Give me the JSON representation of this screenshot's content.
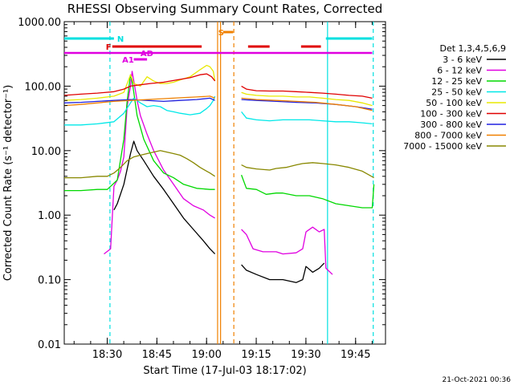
{
  "chart_data": {
    "type": "line",
    "title": "RHESSI Observing Summary Count Rates, Corrected",
    "xlabel": "Start Time (17-Jul-03 18:17:02)",
    "ylabel": "Corrected Count Rate (s⁻¹ detector⁻¹)",
    "yscale": "log",
    "ylim": [
      0.01,
      1000
    ],
    "xlim_minutes_after_start": [
      0,
      97
    ],
    "x_tick_labels": [
      "18:30",
      "18:45",
      "19:00",
      "19:15",
      "19:30",
      "19:45"
    ],
    "x_tick_minutes": [
      12.97,
      27.97,
      42.97,
      57.97,
      72.97,
      87.97
    ],
    "y_tick_labels": [
      "0.01",
      "0.10",
      "1.00",
      "10.00",
      "100.00",
      "1000.00"
    ],
    "y_tick_values": [
      0.01,
      0.1,
      1,
      10,
      100,
      1000
    ],
    "legend_header": "Det 1,3,4,5,6,9",
    "series": [
      {
        "name": "3 - 6 keV",
        "color": "#000000",
        "values": [
          [
            15,
            1.2
          ],
          [
            16,
            1.5
          ],
          [
            18,
            3
          ],
          [
            20,
            9
          ],
          [
            21,
            14
          ],
          [
            22,
            10
          ],
          [
            24,
            7
          ],
          [
            27,
            4
          ],
          [
            30,
            2.5
          ],
          [
            33,
            1.5
          ],
          [
            36,
            0.9
          ],
          [
            39,
            0.6
          ],
          [
            42,
            0.4
          ],
          [
            44,
            0.3
          ],
          [
            45.5,
            0.25
          ],
          [
            50,
            null
          ],
          [
            53.5,
            0.17
          ],
          [
            55,
            0.14
          ],
          [
            58,
            0.12
          ],
          [
            62,
            0.1
          ],
          [
            66,
            0.1
          ],
          [
            70,
            0.09
          ],
          [
            72,
            0.1
          ],
          [
            73,
            0.16
          ],
          [
            75,
            0.13
          ],
          [
            77,
            0.15
          ],
          [
            78.5,
            0.18
          ]
        ]
      },
      {
        "name": "6 - 12 keV",
        "color": "#e000e0",
        "values": [
          [
            12,
            0.25
          ],
          [
            14,
            0.3
          ],
          [
            15,
            2.8
          ],
          [
            16,
            3.5
          ],
          [
            17,
            4.8
          ],
          [
            18,
            8
          ],
          [
            19,
            50
          ],
          [
            20,
            100
          ],
          [
            20.5,
            170
          ],
          [
            21,
            120
          ],
          [
            22,
            60
          ],
          [
            23,
            35
          ],
          [
            25,
            18
          ],
          [
            27,
            10
          ],
          [
            30,
            5
          ],
          [
            33,
            3
          ],
          [
            36,
            1.8
          ],
          [
            39,
            1.4
          ],
          [
            42,
            1.2
          ],
          [
            44,
            1.0
          ],
          [
            45.5,
            0.9
          ],
          [
            50,
            null
          ],
          [
            53.5,
            0.6
          ],
          [
            55,
            0.5
          ],
          [
            57,
            0.3
          ],
          [
            60,
            0.27
          ],
          [
            64,
            0.27
          ],
          [
            66,
            0.25
          ],
          [
            70,
            0.26
          ],
          [
            72,
            0.3
          ],
          [
            73,
            0.55
          ],
          [
            75,
            0.65
          ],
          [
            77,
            0.55
          ],
          [
            78.5,
            0.6
          ],
          [
            79,
            0.15
          ],
          [
            81,
            0.12
          ]
        ]
      },
      {
        "name": "12 - 25 keV",
        "color": "#00d800",
        "values": [
          [
            0,
            2.4
          ],
          [
            5,
            2.4
          ],
          [
            10,
            2.5
          ],
          [
            13,
            2.5
          ],
          [
            16,
            3.5
          ],
          [
            18,
            15
          ],
          [
            19,
            60
          ],
          [
            20,
            150
          ],
          [
            20.5,
            120
          ],
          [
            21,
            80
          ],
          [
            22,
            35
          ],
          [
            24,
            15
          ],
          [
            27,
            7
          ],
          [
            30,
            4.5
          ],
          [
            33,
            3.8
          ],
          [
            36,
            3
          ],
          [
            40,
            2.6
          ],
          [
            44,
            2.5
          ],
          [
            45.5,
            2.5
          ],
          [
            50,
            null
          ],
          [
            53.5,
            4.2
          ],
          [
            55,
            2.6
          ],
          [
            58,
            2.5
          ],
          [
            61,
            2.1
          ],
          [
            64,
            2.2
          ],
          [
            66,
            2.2
          ],
          [
            70,
            2
          ],
          [
            74,
            2
          ],
          [
            78,
            1.8
          ],
          [
            82,
            1.5
          ],
          [
            86,
            1.4
          ],
          [
            90,
            1.3
          ],
          [
            93,
            1.3
          ],
          [
            93.5,
            3
          ]
        ]
      },
      {
        "name": "25 - 50 keV",
        "color": "#00e8e8",
        "values": [
          [
            0,
            25
          ],
          [
            5,
            25
          ],
          [
            10,
            26
          ],
          [
            15,
            28
          ],
          [
            18,
            38
          ],
          [
            20,
            55
          ],
          [
            21,
            65
          ],
          [
            23,
            55
          ],
          [
            25,
            48
          ],
          [
            27,
            50
          ],
          [
            29,
            48
          ],
          [
            31,
            42
          ],
          [
            33,
            40
          ],
          [
            35,
            38
          ],
          [
            38,
            36
          ],
          [
            41,
            38
          ],
          [
            43,
            45
          ],
          [
            44,
            50
          ],
          [
            45,
            60
          ],
          [
            45.5,
            70
          ],
          [
            50,
            null
          ],
          [
            53.5,
            40
          ],
          [
            55,
            32
          ],
          [
            58,
            30
          ],
          [
            62,
            29
          ],
          [
            66,
            30
          ],
          [
            70,
            30
          ],
          [
            74,
            30
          ],
          [
            78,
            29
          ],
          [
            82,
            28
          ],
          [
            86,
            28
          ],
          [
            90,
            27
          ],
          [
            93,
            26
          ]
        ]
      },
      {
        "name": "50 - 100 keV",
        "color": "#e8e800",
        "values": [
          [
            0,
            60
          ],
          [
            5,
            62
          ],
          [
            10,
            65
          ],
          [
            15,
            70
          ],
          [
            18,
            80
          ],
          [
            20,
            150
          ],
          [
            21,
            110
          ],
          [
            23,
            100
          ],
          [
            25,
            140
          ],
          [
            27,
            120
          ],
          [
            29,
            110
          ],
          [
            31,
            110
          ],
          [
            33,
            115
          ],
          [
            35,
            125
          ],
          [
            38,
            140
          ],
          [
            41,
            180
          ],
          [
            43,
            210
          ],
          [
            44,
            200
          ],
          [
            45,
            170
          ],
          [
            45.5,
            120
          ],
          [
            50,
            null
          ],
          [
            53.5,
            80
          ],
          [
            55,
            75
          ],
          [
            58,
            72
          ],
          [
            62,
            70
          ],
          [
            66,
            70
          ],
          [
            70,
            68
          ],
          [
            74,
            68
          ],
          [
            78,
            65
          ],
          [
            82,
            62
          ],
          [
            86,
            60
          ],
          [
            90,
            55
          ],
          [
            93,
            50
          ]
        ]
      },
      {
        "name": "100 - 300 keV",
        "color": "#e00000",
        "values": [
          [
            0,
            72
          ],
          [
            5,
            75
          ],
          [
            10,
            78
          ],
          [
            15,
            82
          ],
          [
            18,
            90
          ],
          [
            20,
            100
          ],
          [
            23,
            105
          ],
          [
            26,
            110
          ],
          [
            30,
            115
          ],
          [
            34,
            125
          ],
          [
            38,
            135
          ],
          [
            41,
            150
          ],
          [
            43,
            155
          ],
          [
            44.5,
            140
          ],
          [
            45.5,
            120
          ],
          [
            50,
            null
          ],
          [
            53.5,
            100
          ],
          [
            55,
            90
          ],
          [
            58,
            85
          ],
          [
            62,
            84
          ],
          [
            66,
            84
          ],
          [
            70,
            82
          ],
          [
            74,
            80
          ],
          [
            78,
            78
          ],
          [
            82,
            75
          ],
          [
            86,
            72
          ],
          [
            90,
            70
          ],
          [
            93,
            65
          ]
        ]
      },
      {
        "name": "300 - 800 keV",
        "color": "#2020e0",
        "values": [
          [
            0,
            55
          ],
          [
            5,
            56
          ],
          [
            10,
            58
          ],
          [
            15,
            60
          ],
          [
            20,
            62
          ],
          [
            25,
            60
          ],
          [
            30,
            58
          ],
          [
            35,
            60
          ],
          [
            40,
            62
          ],
          [
            44,
            65
          ],
          [
            45.5,
            60
          ],
          [
            50,
            null
          ],
          [
            53.5,
            62
          ],
          [
            58,
            60
          ],
          [
            64,
            58
          ],
          [
            70,
            56
          ],
          [
            76,
            55
          ],
          [
            82,
            52
          ],
          [
            88,
            48
          ],
          [
            93,
            44
          ]
        ]
      },
      {
        "name": "800 - 7000 keV",
        "color": "#f08000",
        "values": [
          [
            0,
            50
          ],
          [
            5,
            52
          ],
          [
            10,
            55
          ],
          [
            15,
            58
          ],
          [
            20,
            60
          ],
          [
            25,
            62
          ],
          [
            30,
            64
          ],
          [
            35,
            66
          ],
          [
            40,
            68
          ],
          [
            44,
            70
          ],
          [
            45.5,
            65
          ],
          [
            50,
            null
          ],
          [
            53.5,
            65
          ],
          [
            58,
            62
          ],
          [
            64,
            60
          ],
          [
            70,
            58
          ],
          [
            76,
            56
          ],
          [
            82,
            52
          ],
          [
            88,
            48
          ],
          [
            93,
            42
          ]
        ]
      },
      {
        "name": "7000 - 15000 keV",
        "color": "#888800",
        "values": [
          [
            0,
            3.8
          ],
          [
            5,
            3.8
          ],
          [
            10,
            4
          ],
          [
            13,
            4
          ],
          [
            15,
            4.5
          ],
          [
            17,
            5.5
          ],
          [
            19,
            7
          ],
          [
            21,
            8
          ],
          [
            23,
            8.5
          ],
          [
            25,
            9
          ],
          [
            27,
            9.5
          ],
          [
            29,
            10
          ],
          [
            31,
            9.5
          ],
          [
            33,
            9
          ],
          [
            35,
            8.5
          ],
          [
            37,
            7.5
          ],
          [
            39,
            6.5
          ],
          [
            41,
            5.5
          ],
          [
            43,
            4.8
          ],
          [
            44,
            4.5
          ],
          [
            45.5,
            4
          ],
          [
            50,
            null
          ],
          [
            53.5,
            6
          ],
          [
            55,
            5.5
          ],
          [
            58,
            5.2
          ],
          [
            62,
            5
          ],
          [
            64,
            5.3
          ],
          [
            67,
            5.5
          ],
          [
            70,
            6
          ],
          [
            72,
            6.3
          ],
          [
            75,
            6.5
          ],
          [
            78,
            6.3
          ],
          [
            82,
            6
          ],
          [
            86,
            5.5
          ],
          [
            90,
            4.8
          ],
          [
            92,
            4.2
          ],
          [
            93.5,
            3.8
          ]
        ]
      }
    ],
    "flags": [
      {
        "label": "N",
        "color": "#00e0e0",
        "segments": [
          [
            0,
            15
          ],
          [
            79,
            93
          ]
        ]
      },
      {
        "label": "S",
        "color": "#f08000",
        "segments": [
          [
            48,
            51
          ]
        ]
      },
      {
        "label": "F",
        "color": "#e00000",
        "segments": [
          [
            14.5,
            41.5
          ],
          [
            55.5,
            62
          ],
          [
            71.5,
            77.5
          ]
        ]
      },
      {
        "label": "AD",
        "color": "#e000e0",
        "segments": [
          [
            0,
            93
          ]
        ]
      },
      {
        "label": "A1",
        "color": "#e000e0",
        "segments": [
          [
            21,
            25
          ]
        ]
      }
    ],
    "vertical_markers": [
      {
        "minute": 13.8,
        "color": "#00e0e0",
        "style": "dashed"
      },
      {
        "minute": 79.5,
        "color": "#00e0e0",
        "style": "solid"
      },
      {
        "minute": 93.3,
        "color": "#00e0e0",
        "style": "dashed"
      },
      {
        "minute": 46.3,
        "color": "#f08000",
        "style": "solid"
      },
      {
        "minute": 47.2,
        "color": "#f08000",
        "style": "solid"
      },
      {
        "minute": 51.2,
        "color": "#f08000",
        "style": "dashed"
      }
    ]
  },
  "footer": {
    "timestamp": "21-Oct-2021 00:36"
  }
}
